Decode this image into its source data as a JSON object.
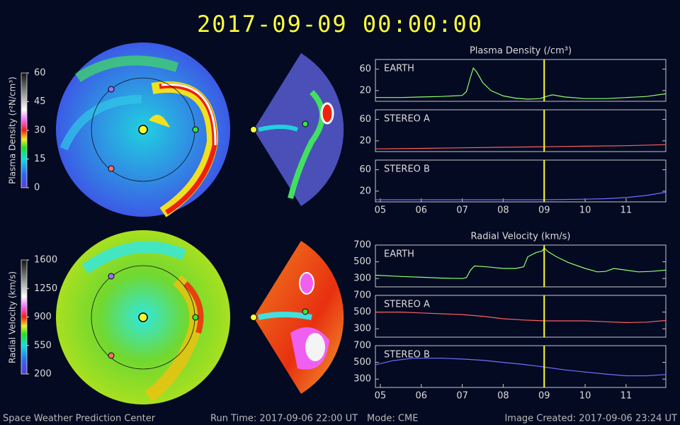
{
  "title": "2017-09-09  00:00:00",
  "footer": {
    "left": "Space Weather Prediction Center",
    "run_time": "Run Time: 2017-09-06 22:00 UT",
    "mode": "Mode: CME",
    "created": "Image Created: 2017-09-06 23:24 UT"
  },
  "colorbars": [
    {
      "label": "Plasma Density (r²N/cm³)",
      "lim": [
        0,
        60
      ],
      "ticks": [
        0,
        15,
        30,
        45,
        60
      ]
    },
    {
      "label": "Radial Velocity (km/s)",
      "lim": [
        200,
        1600
      ],
      "ticks": [
        200,
        550,
        900,
        1250,
        1600
      ]
    }
  ],
  "chart_data": [
    {
      "type": "line",
      "title": "Plasma Density (/cm³)",
      "label": "EARTH",
      "xlim": [
        4.88,
        11.97
      ],
      "ylim": [
        0,
        78
      ],
      "yticks": [
        20,
        60
      ],
      "marker_x": 9,
      "marker_color": "#ffff30",
      "x": [
        4.88,
        5.5,
        6,
        6.5,
        7,
        7.1,
        7.2,
        7.27,
        7.35,
        7.5,
        7.7,
        8,
        8.3,
        8.6,
        8.9,
        9.05,
        9.2,
        9.5,
        10,
        10.5,
        11,
        11.5,
        11.97
      ],
      "series": [
        {
          "color": "#90ff70",
          "values": [
            7,
            7,
            8,
            9,
            11,
            18,
            45,
            62,
            55,
            35,
            20,
            10,
            6,
            4,
            5,
            9,
            12,
            8,
            5,
            5,
            7,
            9,
            14
          ]
        }
      ]
    },
    {
      "type": "line",
      "label": "STEREO A",
      "xlim": [
        4.88,
        11.97
      ],
      "ylim": [
        0,
        78
      ],
      "yticks": [
        20,
        60
      ],
      "marker_x": 9,
      "marker_color": "#ffff30",
      "x": [
        4.88,
        6,
        7,
        8,
        9,
        10,
        11,
        11.97
      ],
      "series": [
        {
          "color": "#ff6060",
          "values": [
            5,
            6,
            7,
            8,
            9,
            10,
            11,
            13
          ]
        }
      ]
    },
    {
      "type": "line",
      "label": "STEREO B",
      "xlim": [
        4.88,
        11.97
      ],
      "ylim": [
        0,
        78
      ],
      "yticks": [
        20,
        60
      ],
      "marker_x": 9,
      "marker_color": "#ffff30",
      "xticks": [
        {
          "value": 5,
          "label": "05"
        },
        {
          "value": 6,
          "label": "06"
        },
        {
          "value": 7,
          "label": "07"
        },
        {
          "value": 8,
          "label": "08"
        },
        {
          "value": 9,
          "label": "09"
        },
        {
          "value": 10,
          "label": "10"
        },
        {
          "value": 11,
          "label": "11"
        }
      ],
      "x": [
        4.88,
        6,
        7,
        8,
        9,
        10,
        10.5,
        11,
        11.5,
        11.97
      ],
      "series": [
        {
          "color": "#7070ff",
          "values": [
            4,
            4,
            4,
            4,
            4,
            5,
            6,
            8,
            12,
            18
          ]
        }
      ]
    },
    {
      "type": "line",
      "title": "Radial Velocity (km/s)",
      "label": "EARTH",
      "xlim": [
        4.88,
        11.97
      ],
      "ylim": [
        200,
        700
      ],
      "yticks": [
        300,
        500,
        700
      ],
      "marker_x": 9,
      "marker_color": "#ffff30",
      "x": [
        4.88,
        5.5,
        6,
        6.5,
        7,
        7.1,
        7.2,
        7.3,
        7.6,
        8,
        8.3,
        8.5,
        8.6,
        8.8,
        8.95,
        9,
        9.1,
        9.3,
        9.6,
        10,
        10.3,
        10.5,
        10.7,
        11,
        11.3,
        11.6,
        11.97
      ],
      "series": [
        {
          "color": "#90ff70",
          "values": [
            340,
            325,
            315,
            305,
            300,
            310,
            400,
            450,
            440,
            420,
            420,
            440,
            560,
            610,
            630,
            665,
            620,
            560,
            490,
            420,
            380,
            385,
            420,
            400,
            380,
            385,
            400
          ]
        }
      ]
    },
    {
      "type": "line",
      "label": "STEREO A",
      "xlim": [
        4.88,
        11.97
      ],
      "ylim": [
        200,
        700
      ],
      "yticks": [
        300,
        500,
        700
      ],
      "marker_x": 9,
      "marker_color": "#ffff30",
      "x": [
        4.88,
        5.5,
        6,
        6.5,
        7,
        7.5,
        8,
        8.5,
        9,
        9.5,
        10,
        10.5,
        11,
        11.5,
        11.97
      ],
      "series": [
        {
          "color": "#ff6060",
          "values": [
            500,
            500,
            490,
            480,
            470,
            450,
            420,
            405,
            395,
            395,
            395,
            385,
            375,
            380,
            400
          ]
        }
      ]
    },
    {
      "type": "line",
      "label": "STEREO B",
      "xlim": [
        4.88,
        11.97
      ],
      "ylim": [
        200,
        700
      ],
      "yticks": [
        300,
        500,
        700
      ],
      "marker_x": 9,
      "marker_color": "#ffff30",
      "xticks": [
        {
          "value": 5,
          "label": "05"
        },
        {
          "value": 6,
          "label": "06"
        },
        {
          "value": 7,
          "label": "07"
        },
        {
          "value": 8,
          "label": "08"
        },
        {
          "value": 9,
          "label": "09"
        },
        {
          "value": 10,
          "label": "10"
        },
        {
          "value": 11,
          "label": "11"
        }
      ],
      "x": [
        4.88,
        5.3,
        5.8,
        6.5,
        7,
        7.5,
        8,
        8.5,
        9,
        9.5,
        10,
        10.5,
        11,
        11.5,
        11.97
      ],
      "series": [
        {
          "color": "#7070ff",
          "values": [
            470,
            520,
            550,
            550,
            540,
            525,
            500,
            475,
            445,
            410,
            385,
            360,
            340,
            340,
            355
          ]
        }
      ]
    }
  ]
}
